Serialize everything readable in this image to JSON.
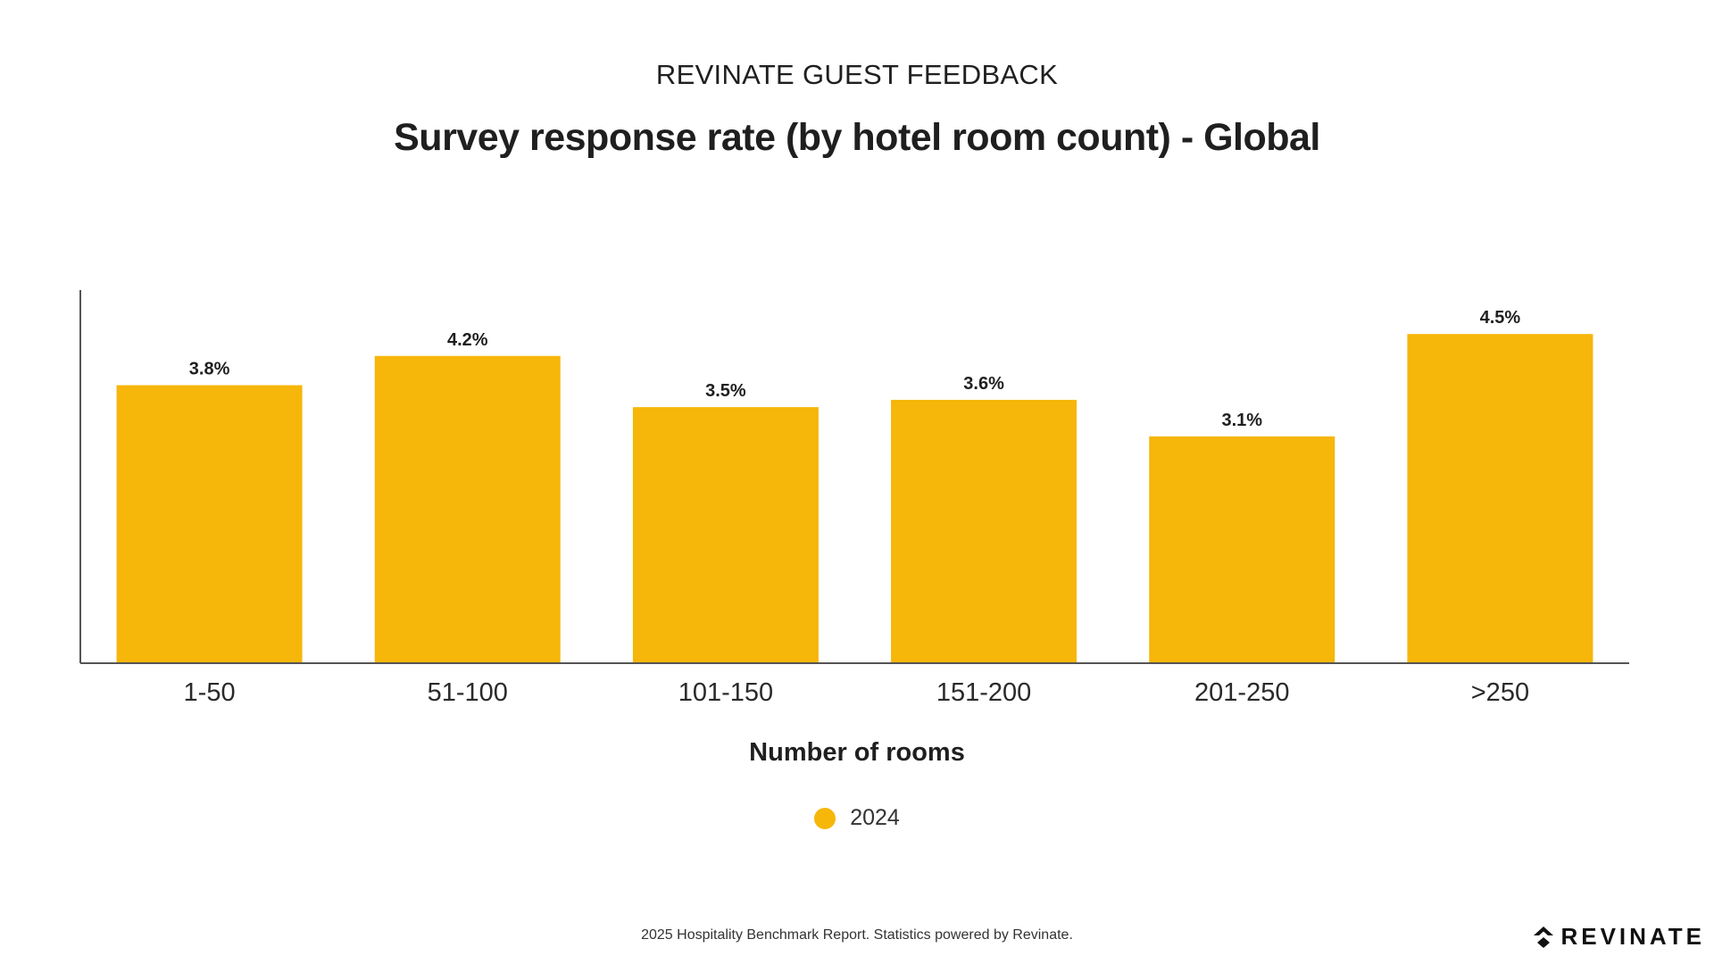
{
  "header": {
    "supertitle": "REVINATE GUEST FEEDBACK",
    "title": "Survey response rate (by hotel room count) - Global"
  },
  "colors": {
    "bar": "#F6B60A",
    "axis": "#555555",
    "text": "#1f1f1f"
  },
  "chart_data": {
    "type": "bar",
    "title": "Survey response rate (by hotel room count) - Global",
    "xlabel": "Number of rooms",
    "ylabel": "",
    "categories": [
      "1-50",
      "51-100",
      "101-150",
      "151-200",
      "201-250",
      ">250"
    ],
    "series": [
      {
        "name": "2024",
        "values": [
          3.8,
          4.2,
          3.5,
          3.6,
          3.1,
          4.5
        ],
        "labels": [
          "3.8%",
          "4.2%",
          "3.5%",
          "3.6%",
          "3.1%",
          "4.5%"
        ]
      }
    ],
    "ylim": [
      0,
      5.1
    ],
    "grid": false,
    "legend_position": "bottom-center"
  },
  "legend": {
    "label": "2024"
  },
  "footer": {
    "text": "2025 Hospitality Benchmark Report. Statistics powered by Revinate."
  },
  "logo": {
    "text": "REVINATE",
    "icon": "revinate-logo-icon"
  }
}
